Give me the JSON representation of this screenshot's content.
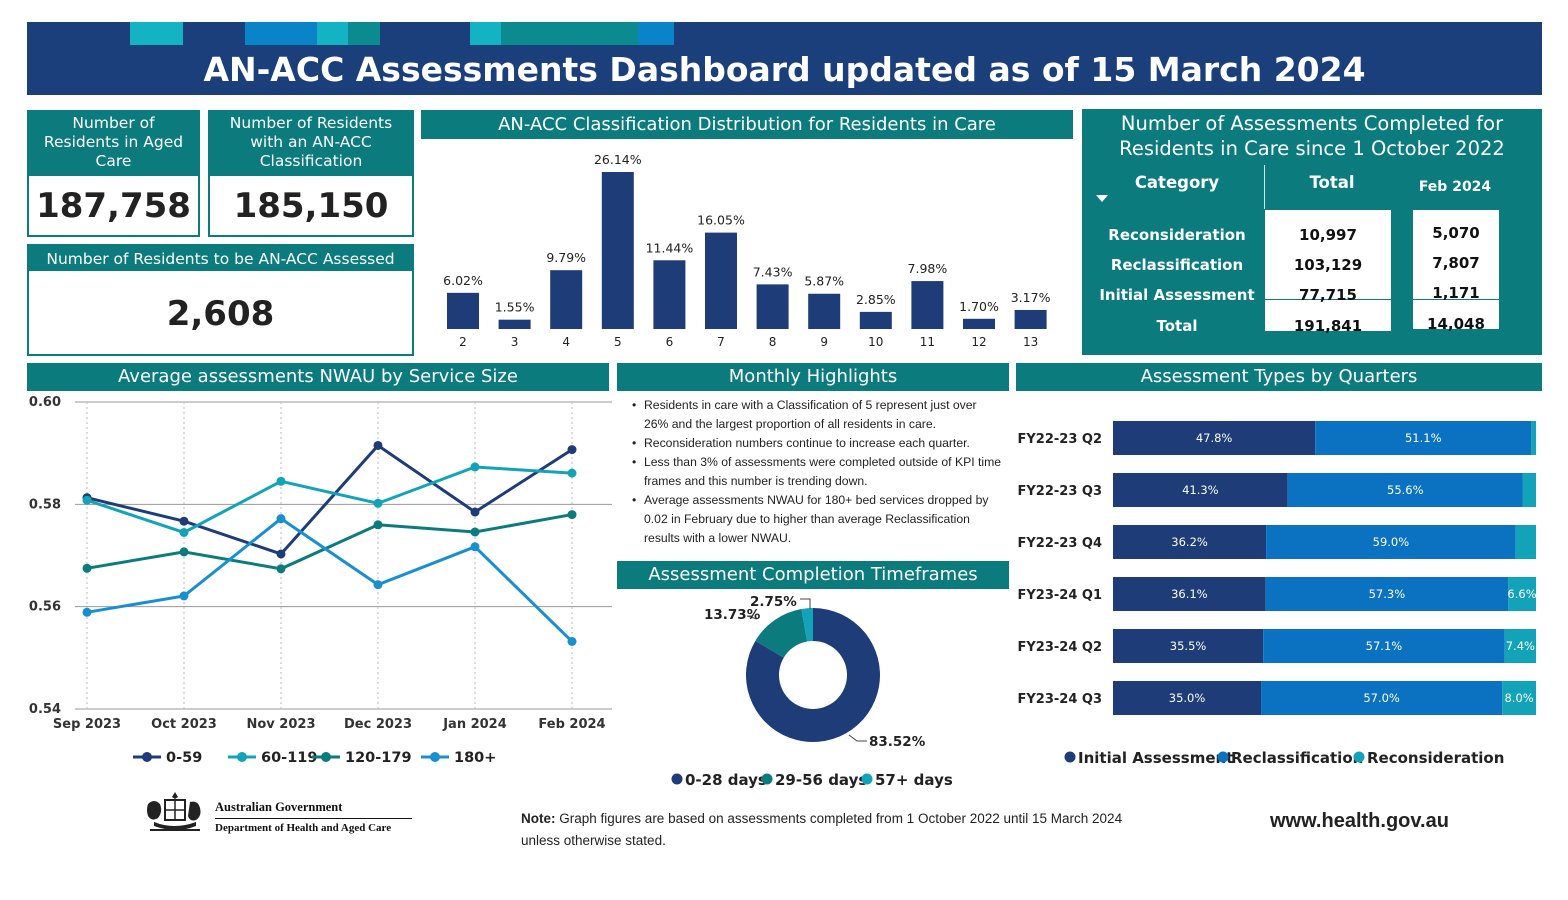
{
  "header": {
    "title": "AN-ACC Assessments Dashboard updated as of 15 March 2024"
  },
  "colors": {
    "navy": "#1b3f7a",
    "teal": "#0b7b7e",
    "blue": "#0a72c0",
    "cyan": "#13a3b8",
    "bar_navy": "#1d3c78"
  },
  "kpis": {
    "residents_label": "Number of Residents in Aged Care",
    "residents_value": "187,758",
    "classified_label": "Number of Residents with an AN-ACC Classification",
    "classified_value": "185,150",
    "to_assess_label": "Number of Residents to be AN-ACC Assessed",
    "to_assess_value": "2,608"
  },
  "classification": {
    "title": "AN-ACC Classification Distribution for Residents in Care"
  },
  "assessments_table": {
    "title_line1": "Number of Assessments Completed for",
    "title_line2": "Residents in Care since 1 October 2022",
    "col_category": "Category",
    "col_total": "Total",
    "col_month": "Feb 2024",
    "rows": [
      {
        "category": "Reconsideration",
        "total": "10,997",
        "month": "5,070"
      },
      {
        "category": "Reclassification",
        "total": "103,129",
        "month": "7,807"
      },
      {
        "category": "Initial Assessment",
        "total": "77,715",
        "month": "1,171"
      },
      {
        "category": "Total",
        "total": "191,841",
        "month": "14,048"
      }
    ]
  },
  "nwau": {
    "title": "Average assessments NWAU by Service Size"
  },
  "highlights": {
    "title": "Monthly Highlights",
    "items": [
      "Residents in care with a Classification of 5 represent just over 26% and the largest proportion of all residents in care.",
      "Reconsideration numbers continue to increase each quarter.",
      "Less than 3% of assessments were completed outside of KPI time frames and this number is trending down.",
      "Average assessments NWAU for 180+ bed services dropped by 0.02 in February due to higher than average Reclassification results with a lower NWAU."
    ]
  },
  "timeframes": {
    "title": "Assessment Completion Timeframes"
  },
  "quarters": {
    "title": "Assessment Types by Quarters"
  },
  "footer": {
    "gov_line1": "Australian Government",
    "gov_line2": "Department of Health and Aged Care",
    "note_label": "Note:",
    "note_text1": "Graph figures are based on assessments completed from 1 October 2022 until 15 March 2024",
    "note_text2": "unless otherwise stated.",
    "website": "www.health.gov.au"
  },
  "chart_data": [
    {
      "type": "bar",
      "title": "AN-ACC Classification Distribution for Residents in Care",
      "categories": [
        "2",
        "3",
        "4",
        "5",
        "6",
        "7",
        "8",
        "9",
        "10",
        "11",
        "12",
        "13"
      ],
      "values": [
        6.02,
        1.55,
        9.79,
        26.14,
        11.44,
        16.05,
        7.43,
        5.87,
        2.85,
        7.98,
        1.7,
        3.17
      ],
      "labels": [
        "6.02%",
        "1.55%",
        "9.79%",
        "26.14%",
        "11.44%",
        "16.05%",
        "7.43%",
        "5.87%",
        "2.85%",
        "7.98%",
        "1.70%",
        "3.17%"
      ]
    },
    {
      "type": "line",
      "title": "Average assessments NWAU by Service Size",
      "x": [
        "Sep 2023",
        "Oct 2023",
        "Nov 2023",
        "Dec 2023",
        "Jan 2024",
        "Feb 2024"
      ],
      "ylim": [
        0.54,
        0.6
      ],
      "yticks": [
        "0.54",
        "0.56",
        "0.58",
        "0.60"
      ],
      "grid": true,
      "legend": "bottom",
      "series": [
        {
          "name": "0-59",
          "color": "#1d3c78",
          "values": [
            0.5813,
            0.5767,
            0.5703,
            0.5915,
            0.5785,
            0.5907
          ]
        },
        {
          "name": "60-119",
          "color": "#13a3b8",
          "values": [
            0.5808,
            0.5745,
            0.5845,
            0.5802,
            0.5873,
            0.5861
          ]
        },
        {
          "name": "120-179",
          "color": "#0b7b7e",
          "values": [
            0.5675,
            0.5707,
            0.5674,
            0.576,
            0.5746,
            0.578
          ]
        },
        {
          "name": "180+",
          "color": "#1a8fd0",
          "values": [
            0.5589,
            0.5621,
            0.5772,
            0.5643,
            0.5717,
            0.5532
          ]
        }
      ]
    },
    {
      "type": "pie",
      "title": "Assessment Completion Timeframes",
      "categories": [
        "0-28 days",
        "29-56 days",
        "57+ days"
      ],
      "values": [
        83.52,
        13.73,
        2.75
      ],
      "labels": [
        "83.52%",
        "13.73%",
        "2.75%"
      ],
      "colors": [
        "#1d3c78",
        "#0b7b7e",
        "#13a3b8"
      ],
      "legend": "bottom"
    },
    {
      "type": "bar",
      "title": "Assessment Types by Quarters",
      "categories": [
        "FY22-23 Q2",
        "FY22-23 Q3",
        "FY22-23 Q4",
        "FY23-24 Q1",
        "FY23-24 Q2",
        "FY23-24 Q3"
      ],
      "series": [
        {
          "name": "Initial Assessment",
          "color": "#1d3c78",
          "values": [
            47.8,
            41.3,
            36.2,
            36.1,
            35.5,
            35.0
          ],
          "labels": [
            "47.8%",
            "41.3%",
            "36.2%",
            "36.1%",
            "35.5%",
            "35.0%"
          ]
        },
        {
          "name": "Reclassification",
          "color": "#0a72c0",
          "values": [
            51.1,
            55.6,
            59.0,
            57.3,
            57.1,
            57.0
          ],
          "labels": [
            "51.1%",
            "55.6%",
            "59.0%",
            "57.3%",
            "57.1%",
            "57.0%"
          ]
        },
        {
          "name": "Reconsideration",
          "color": "#13a3b8",
          "values": [
            1.1,
            3.1,
            4.8,
            6.6,
            7.4,
            8.0
          ],
          "labels": [
            "",
            "",
            "",
            "6.6%",
            "7.4%",
            "8.0%"
          ]
        }
      ],
      "stacked": true,
      "orientation": "horizontal",
      "legend": "bottom"
    }
  ]
}
